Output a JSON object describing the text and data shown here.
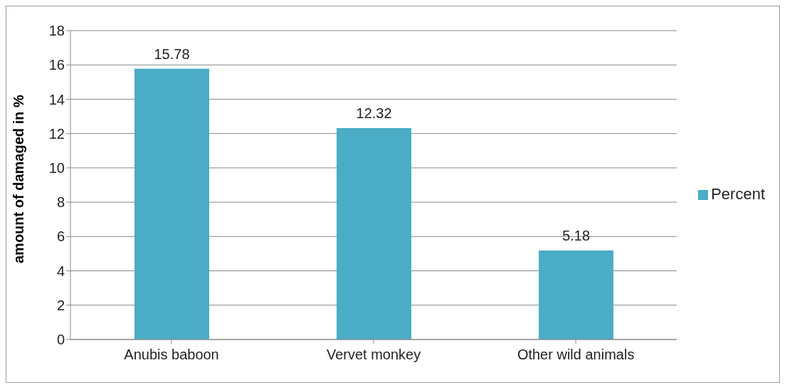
{
  "chart_data": {
    "type": "bar",
    "ylabel": "amount of damaged in %",
    "categories": [
      "Anubis baboon",
      "Vervet monkey",
      "Other wild animals"
    ],
    "series": [
      {
        "name": "Percent",
        "color": "#4bacc6",
        "values": [
          15.78,
          12.32,
          5.18
        ]
      }
    ],
    "ylim": [
      0,
      18
    ],
    "yticks": [
      0,
      2,
      4,
      6,
      8,
      10,
      12,
      14,
      16,
      18
    ],
    "grid": "y",
    "legend": "right",
    "data_labels": true
  }
}
